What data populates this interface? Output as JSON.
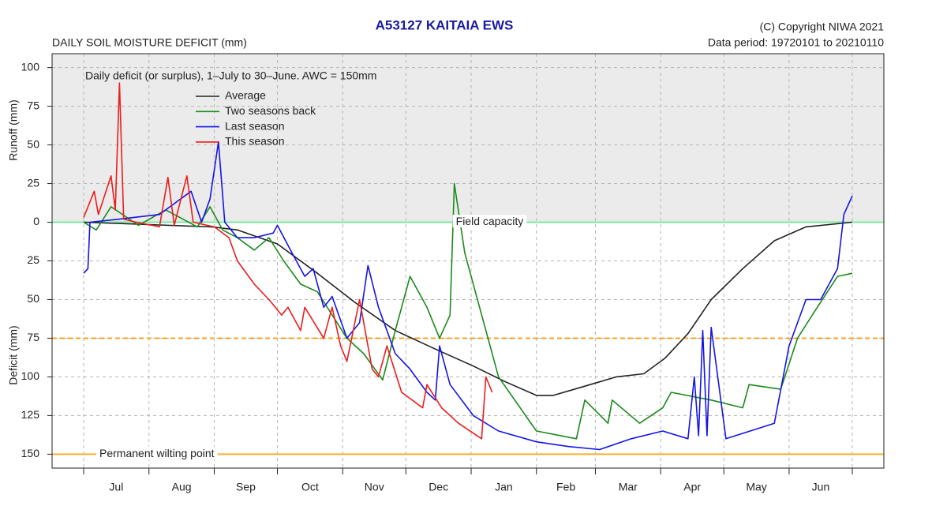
{
  "chart_data": {
    "type": "line",
    "title": "A53127  KAITAIA EWS",
    "subtitle": "DAILY SOIL MOISTURE DEFICIT (mm)",
    "copyright": "(C) Copyright NIWA  2021",
    "data_period": "Data period:  19720101  to  20210110",
    "note": "Daily deficit (or surplus), 1–July to 30–June.  AWC = 150mm",
    "y_label_upper": "Runoff (mm)",
    "y_label_lower": "Deficit (mm)",
    "xlim": [
      -15,
      380
    ],
    "xticks": [
      0,
      31,
      62,
      92,
      123,
      153,
      184,
      215,
      243,
      274,
      304,
      335,
      365
    ],
    "months": [
      "Jul",
      "Aug",
      "Sep",
      "Oct",
      "Nov",
      "Dec",
      "Jan",
      "Feb",
      "Mar",
      "Apr",
      "May",
      "Jun"
    ],
    "ylim": [
      -159,
      109
    ],
    "yticks": [
      100,
      75,
      50,
      25,
      0,
      {
        "value": -25,
        "label": "25"
      },
      {
        "value": -50,
        "label": "50"
      },
      {
        "value": -75,
        "label": "75"
      },
      {
        "value": -100,
        "label": "100"
      },
      {
        "value": -125,
        "label": "125"
      },
      {
        "value": -150,
        "label": "150"
      }
    ],
    "grid": true,
    "shaded_range": {
      "from": 0,
      "color": "#ebebeb"
    },
    "reference_lines": [
      {
        "value": 0,
        "label": "Field capacity",
        "color": "#7ee8a6",
        "style": "solid"
      },
      {
        "value": -75,
        "color": "#f5a623",
        "style": "dashed"
      },
      {
        "value": -150,
        "label": "Permanent wilting point",
        "color": "#f5b034",
        "style": "solid"
      }
    ],
    "series": [
      {
        "name": "Average",
        "color": "#222222",
        "x": [
          0,
          61,
          73,
          92,
          111,
          129,
          148,
          167,
          185,
          200,
          215,
          223,
          238,
          253,
          266,
          276,
          287,
          298,
          313,
          328,
          343,
          365
        ],
        "values": [
          0,
          -3,
          -5,
          -14,
          -33,
          -52,
          -70,
          -82,
          -93,
          -103,
          -112,
          -112,
          -106,
          -100,
          -98,
          -88,
          -72,
          -50,
          -30,
          -12,
          -3,
          0
        ]
      },
      {
        "name": "Two seasons back",
        "color": "#1a8a1a",
        "x": [
          0,
          6,
          13,
          26,
          39,
          54,
          60,
          66,
          73,
          81,
          88,
          95,
          103,
          111,
          118,
          125,
          133,
          142,
          148,
          155,
          163,
          169,
          174,
          176,
          181,
          197,
          215,
          234,
          238,
          249,
          251,
          264,
          275,
          279,
          298,
          313,
          316,
          331,
          339,
          346,
          358,
          365
        ],
        "values": [
          0,
          -5,
          10,
          -2,
          8,
          -3,
          10,
          -5,
          -10,
          -18,
          -10,
          -25,
          -40,
          -45,
          -60,
          -75,
          -85,
          -102,
          -70,
          -35,
          -55,
          -75,
          -60,
          25,
          -20,
          -100,
          -135,
          -140,
          -115,
          -130,
          -115,
          -130,
          -120,
          -110,
          -115,
          -120,
          -105,
          -108,
          -75,
          -60,
          -35,
          -33
        ]
      },
      {
        "name": "Last season",
        "color": "#1414e6",
        "x": [
          0,
          2,
          3,
          17,
          36,
          51,
          56,
          60,
          64,
          67,
          73,
          81,
          90,
          92,
          99,
          105,
          109,
          114,
          118,
          125,
          131,
          135,
          140,
          148,
          155,
          163,
          167,
          169,
          174,
          185,
          197,
          215,
          230,
          245,
          260,
          275,
          287,
          290,
          292,
          294,
          296,
          298,
          305,
          328,
          335,
          343,
          350,
          358,
          361,
          365
        ],
        "values": [
          -33,
          -30,
          0,
          2,
          5,
          20,
          0,
          15,
          52,
          0,
          -10,
          -10,
          -7,
          -2,
          -20,
          -35,
          -30,
          -55,
          -48,
          -75,
          -65,
          -28,
          -55,
          -85,
          -95,
          -110,
          -115,
          -80,
          -105,
          -125,
          -135,
          -142,
          -145,
          -147,
          -140,
          -135,
          -140,
          -100,
          -138,
          -70,
          -138,
          -68,
          -140,
          -130,
          -80,
          -50,
          -50,
          -30,
          5,
          17
        ]
      },
      {
        "name": "This season",
        "color": "#ee1c1c",
        "x": [
          0,
          5,
          7,
          13,
          15,
          17,
          19,
          25,
          36,
          40,
          43,
          49,
          52,
          62,
          69,
          73,
          81,
          88,
          94,
          97,
          103,
          105,
          114,
          118,
          122,
          125,
          131,
          137,
          140,
          144,
          151,
          161,
          163,
          170,
          178,
          189,
          191,
          194
        ],
        "values": [
          3,
          20,
          5,
          30,
          8,
          90,
          2,
          0,
          -3,
          29,
          -2,
          30,
          0,
          -3,
          -10,
          -25,
          -40,
          -50,
          -60,
          -55,
          -70,
          -55,
          -75,
          -55,
          -80,
          -90,
          -50,
          -95,
          -100,
          -80,
          -110,
          -120,
          -105,
          -120,
          -130,
          -140,
          -100,
          -110
        ]
      }
    ]
  }
}
